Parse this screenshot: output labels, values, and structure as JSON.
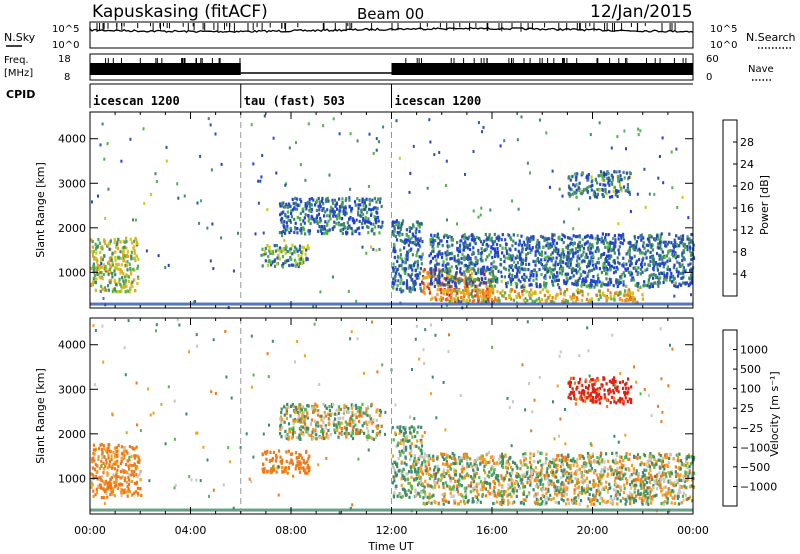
{
  "header": {
    "station": "Kapuskasing (fitACF)",
    "beam": "Beam 00",
    "date": "12/Jan/2015"
  },
  "info_panels": {
    "nsky_label": "N.Sky",
    "nsky_ticks": [
      "10^5",
      "10^0"
    ],
    "nsearch_label": "N.Search",
    "nsearch_ticks": [
      "10^5",
      "10^0"
    ],
    "freq_label": "Freq.",
    "freq_unit": "[MHz]",
    "freq_ticks": [
      "18",
      "8"
    ],
    "nave_label": "Nave",
    "nave_ticks": [
      "60",
      "0"
    ],
    "cpid_label": "CPID",
    "cpid_segments": [
      {
        "label": "icescan 1200",
        "start": 0,
        "end": 6
      },
      {
        "label": "tau (fast) 503",
        "start": 6,
        "end": 12
      },
      {
        "label": "icescan 1200",
        "start": 12,
        "end": 24
      }
    ]
  },
  "colors": {
    "power_scale": [
      "#1f3fd6",
      "#2a52b0",
      "#3f8a6c",
      "#4fb24a",
      "#c8c81e",
      "#f0a21e",
      "#f07a1a",
      "#e23a14",
      "#d01010"
    ],
    "velocity_scale": [
      "#2d3fd0",
      "#3a6ec8",
      "#3d8a6a",
      "#5ab84a",
      "#c8c8c0",
      "#c8c8c0",
      "#f0a020",
      "#f07818",
      "#e02010"
    ]
  },
  "chart_data": [
    {
      "type": "heatmap",
      "title": "Power",
      "ylabel": "Slant Range [km]",
      "xlabel": "",
      "xlim": [
        0,
        24
      ],
      "ylim": [
        200,
        4600
      ],
      "yticks": [
        "1000",
        "2000",
        "3000",
        "4000"
      ],
      "colorbar": {
        "label": "Power [dB]",
        "ticks": [
          "4",
          "8",
          "12",
          "16",
          "20",
          "24",
          "28"
        ],
        "range": [
          0,
          30
        ]
      },
      "regions": [
        {
          "t0": 0.0,
          "t1": 1.9,
          "r0": 600,
          "r1": 1800,
          "value": 14
        },
        {
          "t0": 6.8,
          "t1": 8.7,
          "r0": 1150,
          "r1": 1650,
          "value": 10
        },
        {
          "t0": 7.5,
          "t1": 11.6,
          "r0": 1900,
          "r1": 2700,
          "value": 6
        },
        {
          "t0": 12.0,
          "t1": 13.2,
          "r0": 600,
          "r1": 2200,
          "value": 6
        },
        {
          "t0": 13.2,
          "t1": 16.0,
          "r0": 380,
          "r1": 1100,
          "value": 22
        },
        {
          "t0": 13.5,
          "t1": 24.0,
          "r0": 700,
          "r1": 1900,
          "value": 6
        },
        {
          "t0": 14.0,
          "t1": 22.0,
          "r0": 350,
          "r1": 650,
          "value": 18
        },
        {
          "t0": 19.0,
          "t1": 21.5,
          "r0": 2700,
          "r1": 3300,
          "value": 8
        }
      ]
    },
    {
      "type": "heatmap",
      "title": "Velocity",
      "ylabel": "Slant Range [km]",
      "xlabel": "Time UT",
      "xlim": [
        0,
        24
      ],
      "ylim": [
        200,
        4600
      ],
      "xticks": [
        "00:00",
        "04:00",
        "08:00",
        "12:00",
        "16:00",
        "20:00",
        "00:00"
      ],
      "yticks": [
        "1000",
        "2000",
        "3000",
        "4000"
      ],
      "colorbar": {
        "label": "Velocity [m s⁻¹]",
        "ticks": [
          "1000",
          "500",
          "100",
          "25",
          "−25",
          "−100",
          "−500",
          "−1000"
        ]
      },
      "regions": [
        {
          "t0": 0.0,
          "t1": 2.0,
          "r0": 600,
          "r1": 1800,
          "value": -150
        },
        {
          "t0": 6.8,
          "t1": 8.7,
          "r0": 1150,
          "r1": 1650,
          "value": -200
        },
        {
          "t0": 7.5,
          "t1": 11.6,
          "r0": 1900,
          "r1": 2700,
          "value": 0
        },
        {
          "t0": 12.0,
          "t1": 13.2,
          "r0": 600,
          "r1": 2200,
          "value": 80
        },
        {
          "t0": 13.2,
          "t1": 24.0,
          "r0": 450,
          "r1": 1600,
          "value": 0
        },
        {
          "t0": 19.0,
          "t1": 21.5,
          "r0": 2700,
          "r1": 3300,
          "value": -600
        }
      ]
    }
  ]
}
